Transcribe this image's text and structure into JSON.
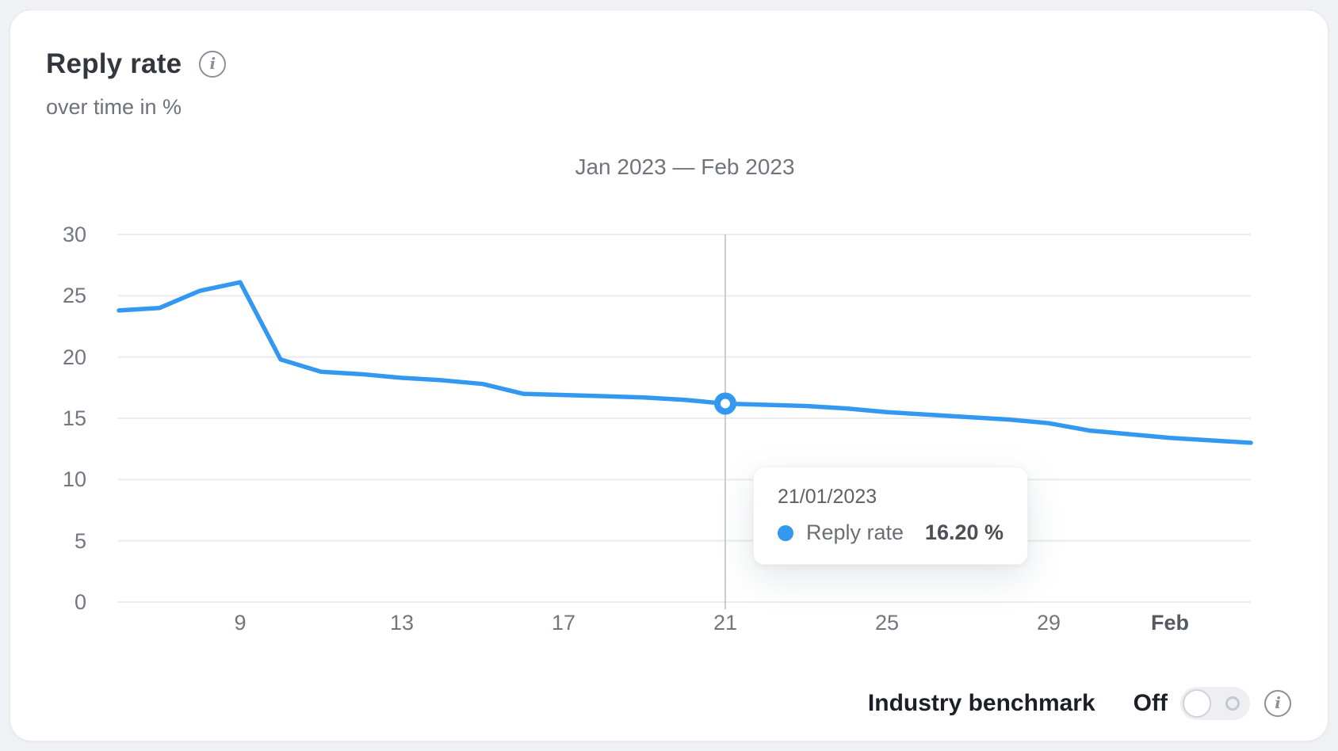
{
  "header": {
    "title": "Reply rate",
    "subtitle": "over time in %",
    "info_icon": "info-icon"
  },
  "chart_data": {
    "type": "line",
    "title": "Jan 2023 — Feb 2023",
    "ylabel": "",
    "xlabel": "",
    "ylim": [
      0,
      30
    ],
    "yticks": [
      0,
      5,
      10,
      15,
      20,
      25,
      30
    ],
    "grid": "horizontal",
    "legend_position": "none",
    "xticks": [
      {
        "label": "9",
        "index": 3,
        "bold": false
      },
      {
        "label": "13",
        "index": 7,
        "bold": false
      },
      {
        "label": "17",
        "index": 11,
        "bold": false
      },
      {
        "label": "21",
        "index": 15,
        "bold": false
      },
      {
        "label": "25",
        "index": 19,
        "bold": false
      },
      {
        "label": "29",
        "index": 23,
        "bold": false
      },
      {
        "label": "Feb",
        "index": 26,
        "bold": true
      }
    ],
    "series": [
      {
        "name": "Reply rate",
        "color": "#3398f0",
        "x": [
          "06/01",
          "07/01",
          "08/01",
          "09/01",
          "10/01",
          "11/01",
          "12/01",
          "13/01",
          "14/01",
          "15/01",
          "16/01",
          "17/01",
          "18/01",
          "19/01",
          "20/01",
          "21/01",
          "22/01",
          "23/01",
          "24/01",
          "25/01",
          "26/01",
          "27/01",
          "28/01",
          "29/01",
          "30/01",
          "31/01",
          "01/02",
          "02/02",
          "03/02"
        ],
        "values": [
          23.8,
          24.0,
          25.4,
          26.1,
          19.8,
          18.8,
          18.6,
          18.3,
          18.1,
          17.8,
          17.0,
          16.9,
          16.8,
          16.7,
          16.5,
          16.2,
          16.1,
          16.0,
          15.8,
          15.5,
          15.3,
          15.1,
          14.9,
          14.6,
          14.0,
          13.7,
          13.4,
          13.2,
          13.0
        ]
      }
    ],
    "highlight": {
      "index": 15,
      "date": "21/01/2023",
      "series": "Reply rate",
      "value": 16.2
    }
  },
  "tooltip": {
    "date": "21/01/2023",
    "series_label": "Reply rate",
    "value": "16.20 %"
  },
  "footer": {
    "benchmark_label": "Industry benchmark",
    "toggle_state": "Off",
    "info_icon": "info-icon"
  },
  "colors": {
    "line": "#3398f0",
    "grid": "#e9ebee",
    "crosshair": "#c8cdd6",
    "page_bg": "#eff1f5",
    "card_bg": "#ffffff",
    "axis_text": "#71767f"
  }
}
